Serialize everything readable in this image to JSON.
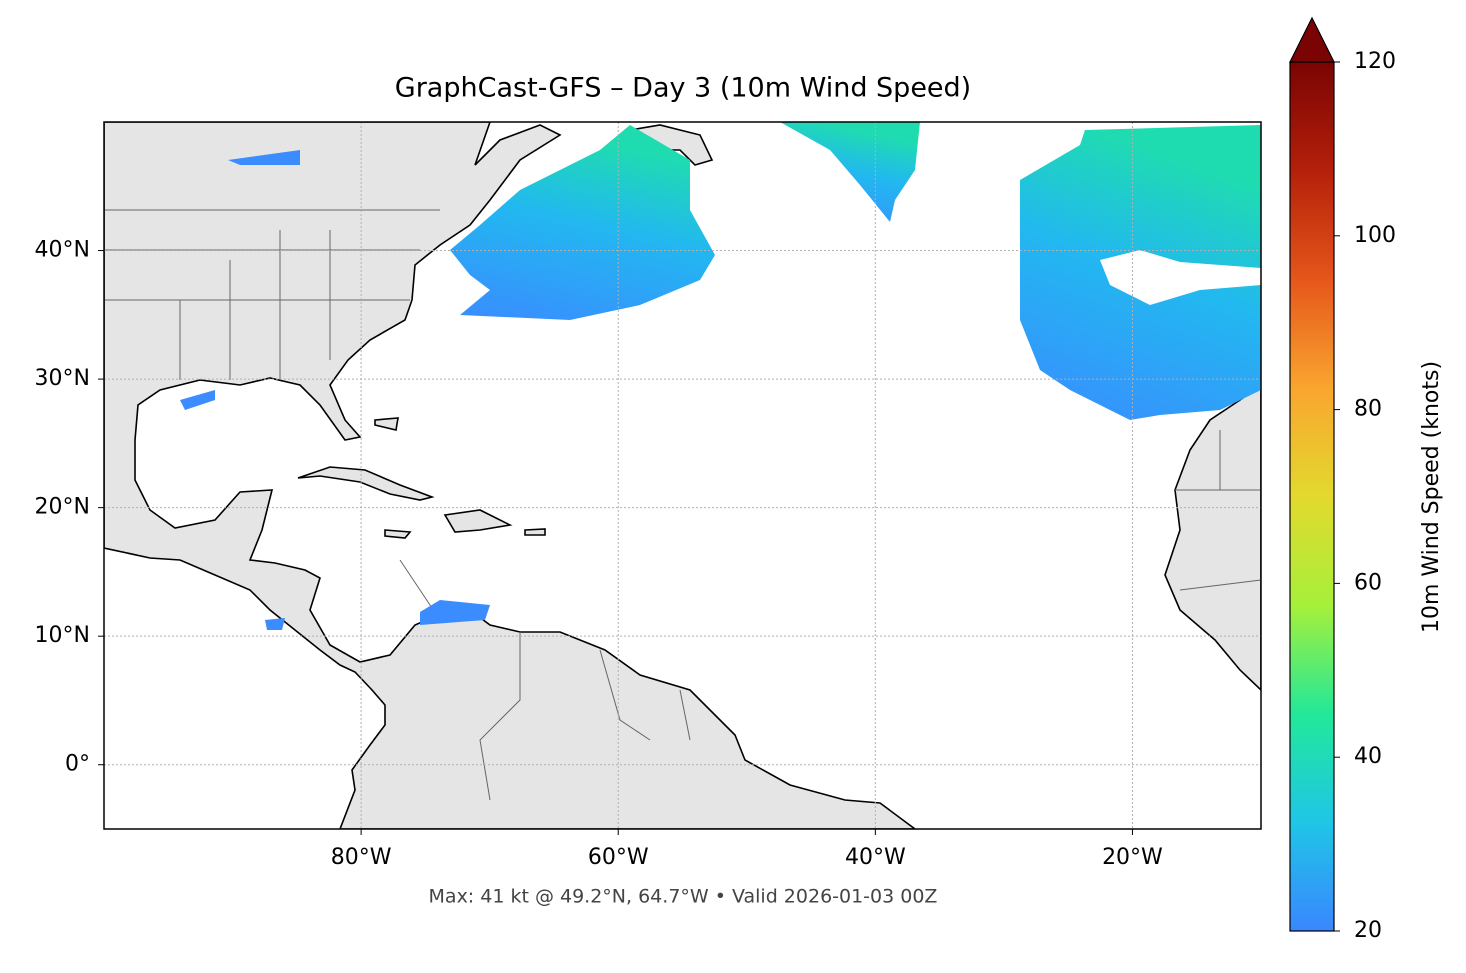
{
  "title": "GraphCast-GFS – Day 3 (10m Wind Speed)",
  "footer": "Max: 41 kt @ 49.2°N, 64.7°W • Valid 2026-01-03 00Z",
  "map": {
    "xlim": [
      -100,
      -10
    ],
    "ylim": [
      -5,
      50
    ],
    "xticks": [
      {
        "value": -80,
        "label": "80°W"
      },
      {
        "value": -60,
        "label": "60°W"
      },
      {
        "value": -40,
        "label": "40°W"
      },
      {
        "value": -20,
        "label": "20°W"
      }
    ],
    "yticks": [
      {
        "value": 0,
        "label": "0°"
      },
      {
        "value": 10,
        "label": "10°N"
      },
      {
        "value": 20,
        "label": "20°N"
      },
      {
        "value": 30,
        "label": "30°N"
      },
      {
        "value": 40,
        "label": "40°N"
      }
    ],
    "grid": true
  },
  "colorbar": {
    "label": "10m Wind Speed (knots)",
    "lim": [
      20,
      120
    ],
    "ticks": [
      20,
      40,
      60,
      80,
      100,
      120
    ],
    "colormap": [
      "#3a86ff",
      "#1fc6e6",
      "#22e899",
      "#a6f03a",
      "#e3d92e",
      "#f9a52f",
      "#e5561b",
      "#b4200a",
      "#7a0403"
    ]
  }
}
